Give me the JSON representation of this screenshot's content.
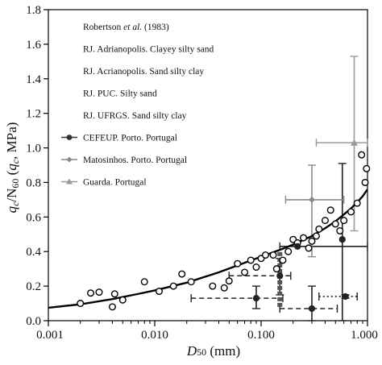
{
  "chart_data": {
    "type": "scatter",
    "xlabel_main": "D",
    "xlabel_sub": "50",
    "xlabel_unit": " (mm)",
    "ylabel": "qc/N60 (qc, MPa)",
    "ylabel_parts": {
      "q1": "q",
      "c1": "c",
      "slash": "/N",
      "n60": "60",
      "open": " (",
      "q2": "q",
      "c2": "c",
      "unit": ", MPa)"
    },
    "xscale": "log",
    "xlim": [
      0.001,
      1.0
    ],
    "ylim": [
      0,
      1.8
    ],
    "x_ticks": [
      {
        "value": 0.001,
        "label": "0.001"
      },
      {
        "value": 0.01,
        "label": "0.010"
      },
      {
        "value": 0.1,
        "label": "0.100"
      },
      {
        "value": 1.0,
        "label": "1.000"
      }
    ],
    "y_ticks": [
      {
        "value": 0.0,
        "label": "0.0"
      },
      {
        "value": 0.2,
        "label": "0.2"
      },
      {
        "value": 0.4,
        "label": "0.4"
      },
      {
        "value": 0.6,
        "label": "0.6"
      },
      {
        "value": 0.8,
        "label": "0.8"
      },
      {
        "value": 1.0,
        "label": "1.0"
      },
      {
        "value": 1.2,
        "label": "1.2"
      },
      {
        "value": 1.4,
        "label": "1.4"
      },
      {
        "value": 1.6,
        "label": "1.6"
      },
      {
        "value": 1.8,
        "label": "1.8"
      }
    ],
    "legend": {
      "placement": "top-left",
      "items": [
        {
          "label_pre": "Robertson ",
          "label_em": "et al.",
          "label_post": " (1983)",
          "marker": "none"
        },
        {
          "label": "RJ. Adrianopolis. Clayey silty sand",
          "marker": "none"
        },
        {
          "label": "RJ. Acrianopolis. Sand silty clay",
          "marker": "none"
        },
        {
          "label": "RJ. PUC. Silty sand",
          "marker": "none"
        },
        {
          "label": "RJ. UFRGS. Sand silty clay",
          "marker": "none"
        },
        {
          "label": "CEFEUP. Porto. Portugal",
          "marker": "circle-line",
          "color": "#333333"
        },
        {
          "label": "Matosinhos. Porto. Portugal",
          "marker": "diamond-line",
          "color": "#888888"
        },
        {
          "label": "Guarda. Portugal",
          "marker": "triangle-line",
          "color": "#999999"
        }
      ]
    },
    "trend_curve": {
      "name": "Robertson et al. (1983)",
      "points": [
        [
          0.001,
          0.075
        ],
        [
          0.002,
          0.095
        ],
        [
          0.004,
          0.125
        ],
        [
          0.007,
          0.155
        ],
        [
          0.01,
          0.175
        ],
        [
          0.02,
          0.22
        ],
        [
          0.04,
          0.28
        ],
        [
          0.07,
          0.335
        ],
        [
          0.1,
          0.37
        ],
        [
          0.15,
          0.41
        ],
        [
          0.2,
          0.44
        ],
        [
          0.3,
          0.49
        ],
        [
          0.4,
          0.535
        ],
        [
          0.5,
          0.575
        ],
        [
          0.6,
          0.615
        ],
        [
          0.7,
          0.65
        ],
        [
          0.8,
          0.685
        ],
        [
          0.9,
          0.72
        ],
        [
          1.0,
          0.76
        ]
      ]
    },
    "open_points": [
      [
        0.002,
        0.1
      ],
      [
        0.0025,
        0.16
      ],
      [
        0.003,
        0.165
      ],
      [
        0.004,
        0.08
      ],
      [
        0.0042,
        0.155
      ],
      [
        0.005,
        0.12
      ],
      [
        0.008,
        0.225
      ],
      [
        0.011,
        0.17
      ],
      [
        0.015,
        0.2
      ],
      [
        0.018,
        0.27
      ],
      [
        0.022,
        0.225
      ],
      [
        0.035,
        0.2
      ],
      [
        0.045,
        0.19
      ],
      [
        0.05,
        0.23
      ],
      [
        0.06,
        0.33
      ],
      [
        0.07,
        0.28
      ],
      [
        0.08,
        0.35
      ],
      [
        0.09,
        0.31
      ],
      [
        0.1,
        0.36
      ],
      [
        0.11,
        0.38
      ],
      [
        0.13,
        0.38
      ],
      [
        0.14,
        0.3
      ],
      [
        0.16,
        0.35
      ],
      [
        0.18,
        0.4
      ],
      [
        0.2,
        0.47
      ],
      [
        0.22,
        0.45
      ],
      [
        0.25,
        0.48
      ],
      [
        0.28,
        0.42
      ],
      [
        0.3,
        0.46
      ],
      [
        0.33,
        0.49
      ],
      [
        0.35,
        0.53
      ],
      [
        0.4,
        0.58
      ],
      [
        0.45,
        0.64
      ],
      [
        0.5,
        0.56
      ],
      [
        0.55,
        0.52
      ],
      [
        0.6,
        0.58
      ],
      [
        0.7,
        0.63
      ],
      [
        0.8,
        0.68
      ],
      [
        0.88,
        0.96
      ],
      [
        0.95,
        0.8
      ],
      [
        0.98,
        0.88
      ]
    ],
    "cefeup_points": [
      {
        "x": 0.09,
        "y": 0.13,
        "xerr": [
          0.022,
          0.16
        ],
        "yerr": [
          0.07,
          0.2
        ],
        "xerr_style": "dashed"
      },
      {
        "x": 0.15,
        "y": 0.26,
        "xerr": [
          0.05,
          0.19
        ],
        "yerr": [
          0.15,
          0.36
        ],
        "xerr_style": "dashed"
      },
      {
        "x": 0.22,
        "y": 0.43,
        "xerr": [
          0.15,
          1.0
        ],
        "yerr": [
          0.43,
          0.43
        ],
        "xerr_style": "solid"
      },
      {
        "x": 0.3,
        "y": 0.07,
        "xerr": [
          0.15,
          0.52
        ],
        "yerr": [
          0.0,
          0.2
        ],
        "xerr_style": "dashed"
      },
      {
        "x": 0.58,
        "y": 0.47,
        "xerr": [
          0.58,
          0.58
        ],
        "yerr": [
          0.0,
          0.91
        ],
        "xerr_style": "solid"
      },
      {
        "x": 0.62,
        "y": 0.14,
        "xerr": [
          0.35,
          0.8
        ],
        "yerr": [
          0.13,
          0.15
        ],
        "xerr_style": "dotted"
      }
    ],
    "cefeup_band": {
      "x": 0.15,
      "y_from": 0.08,
      "y_to": 0.4
    },
    "matosinhos_points": [
      {
        "x": 0.3,
        "y": 0.7,
        "xerr": [
          0.17,
          0.6
        ],
        "yerr": [
          0.37,
          0.9
        ]
      }
    ],
    "guarda_points": [
      {
        "x": 0.75,
        "y": 1.03,
        "xerr": [
          0.33,
          1.0
        ],
        "yerr": [
          0.52,
          1.53
        ]
      }
    ],
    "grid": false
  }
}
